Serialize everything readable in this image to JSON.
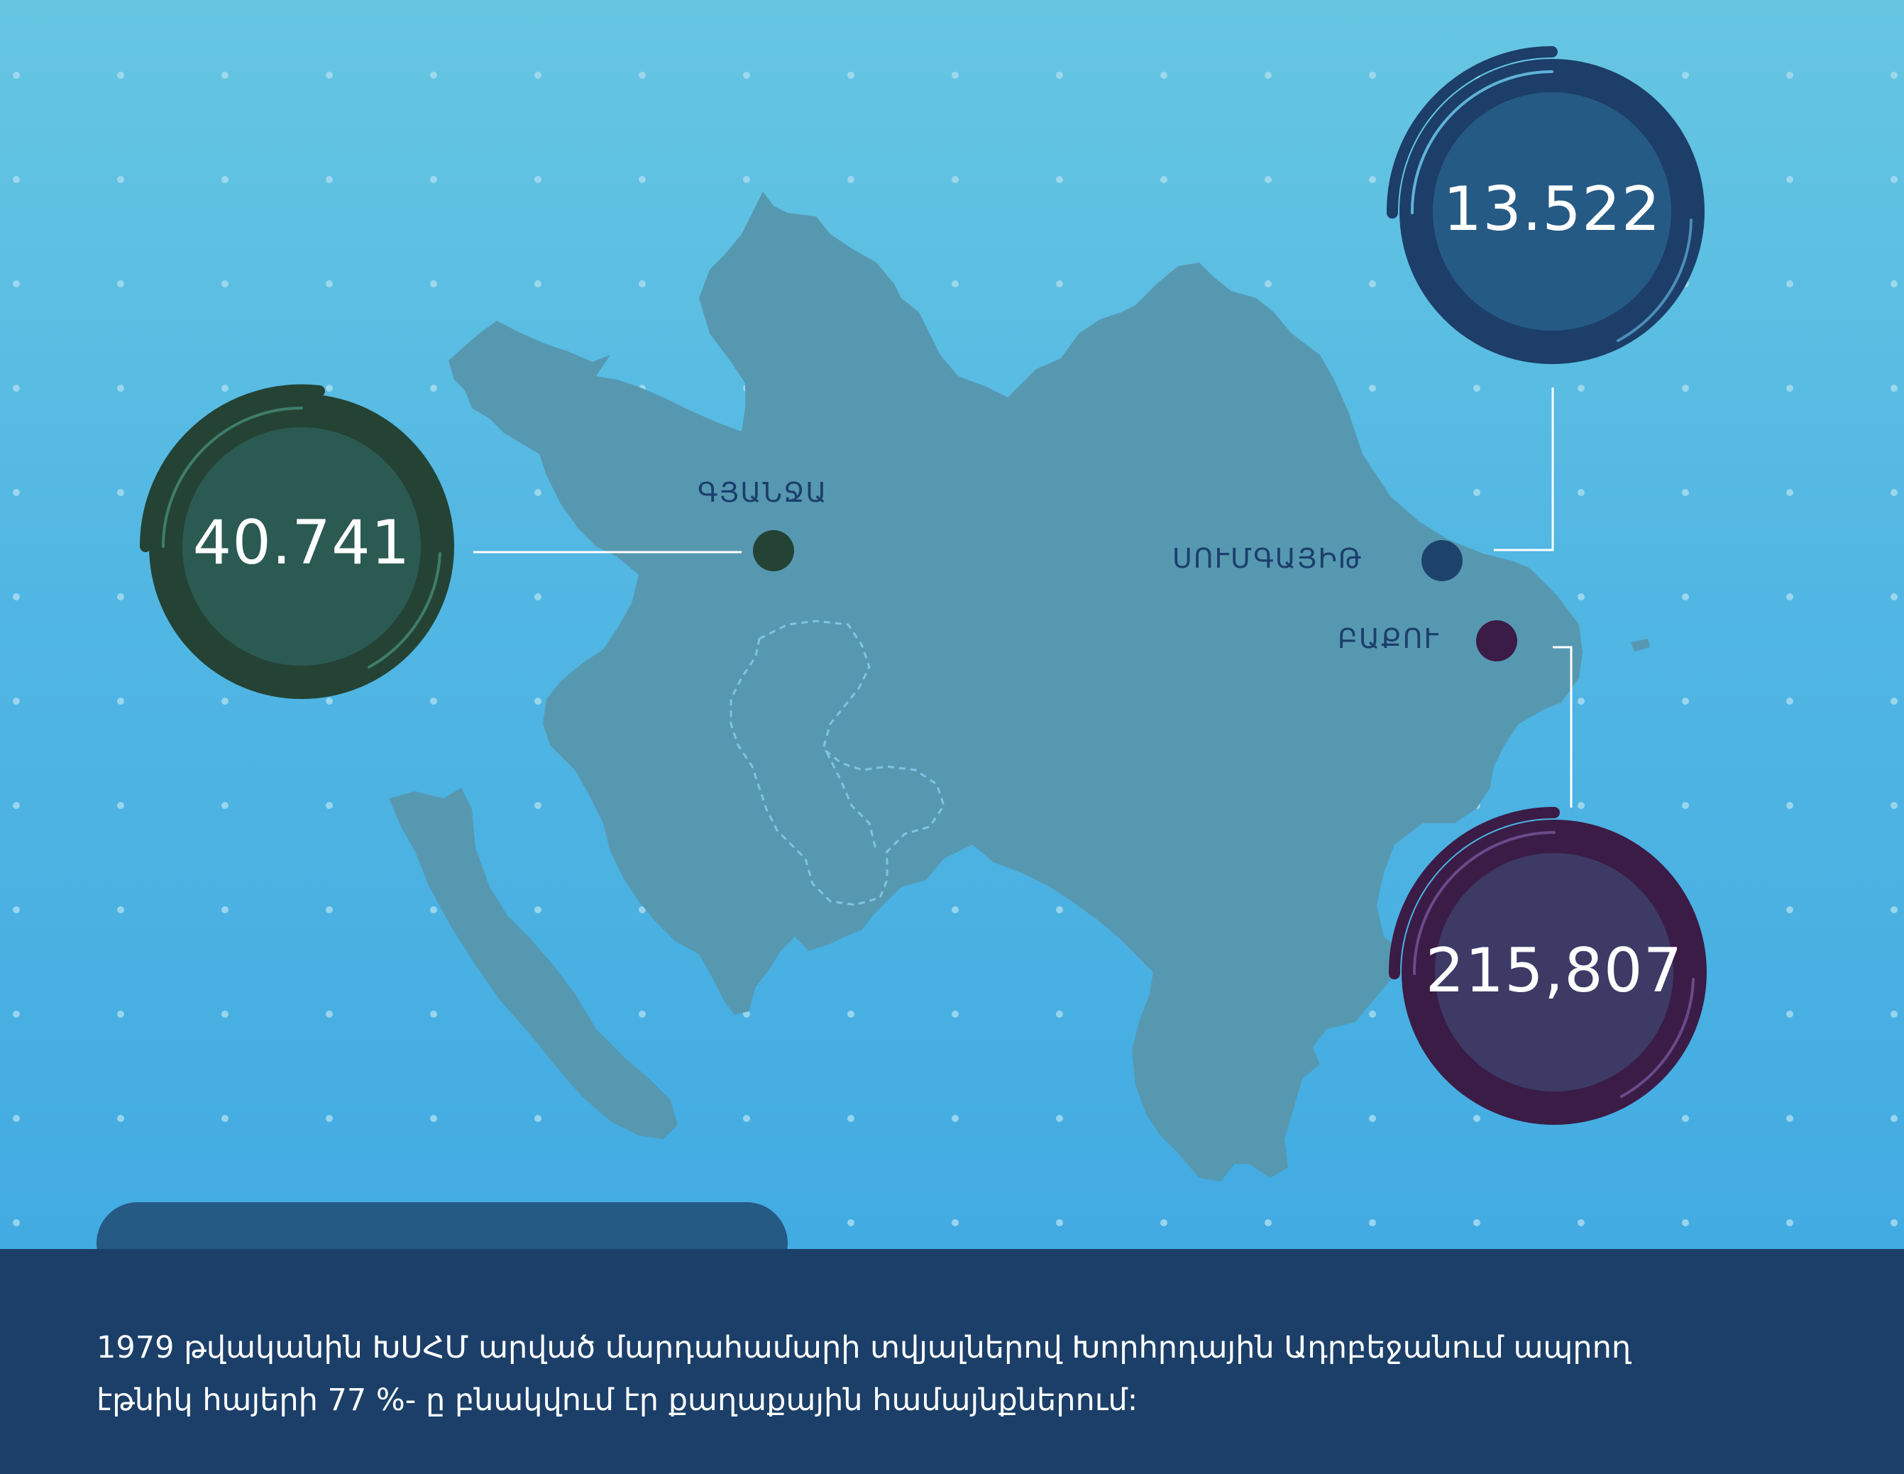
{
  "cities": [
    {
      "id": "ganja",
      "name": "ԳՅԱՆՋԱ",
      "value": "40.741",
      "color": "#2b5a52",
      "ring": "#244335"
    },
    {
      "id": "sumgait",
      "name": "ՍՈՒՄԳԱՅԻԹ",
      "value": "13.522",
      "color": "#255a85",
      "ring": "#1c3e68"
    },
    {
      "id": "baku",
      "name": "ԲԱՔՈՒ",
      "value": "215,807",
      "color": "#3d3a66",
      "ring": "#3a1c46"
    }
  ],
  "caption": {
    "line1": "1979 թվականին ԽՍՀՄ արված մարդահամարի տվյալներով Խորհրդային Ադրբեջանում ապրող",
    "line2": "էթնիկ հայերի 77 %- ը բնակվում էր քաղաքային համայնքներում:"
  },
  "colors": {
    "map_fill": "#5798b1",
    "footer": "#1b3f68",
    "tab": "#255a84"
  }
}
